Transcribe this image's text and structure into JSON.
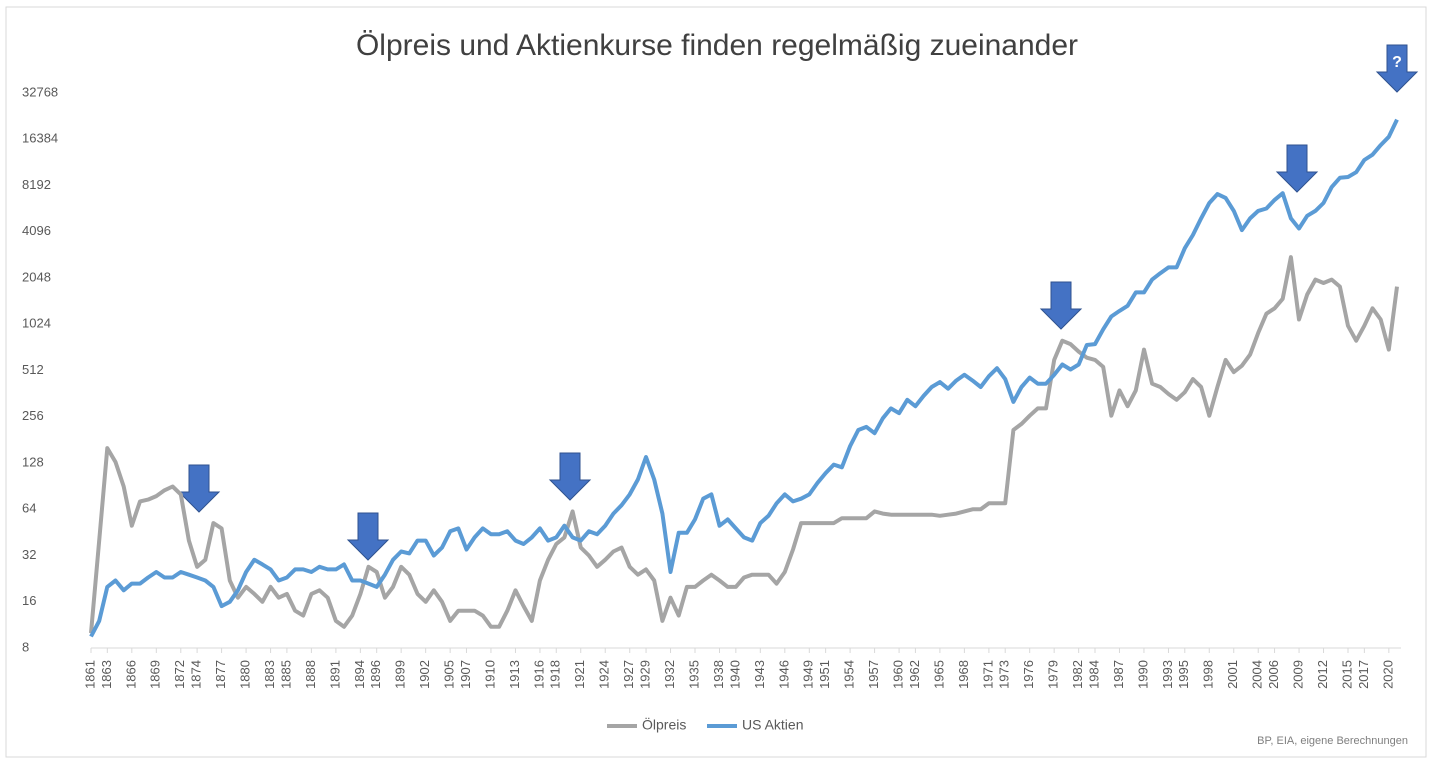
{
  "chart_data": {
    "type": "line",
    "title": "Ölpreis und Aktienkurse finden regelmäßig zueinander",
    "annotation": "?",
    "source": "BP, EIA, eigene Berechnungen",
    "log_scale": true,
    "log_base": 2,
    "grid": false,
    "legend": "bottom",
    "x": [
      1861,
      1862,
      1863,
      1864,
      1865,
      1866,
      1867,
      1868,
      1869,
      1870,
      1871,
      1872,
      1873,
      1874,
      1875,
      1876,
      1877,
      1878,
      1879,
      1880,
      1881,
      1882,
      1883,
      1884,
      1885,
      1886,
      1887,
      1888,
      1889,
      1890,
      1891,
      1892,
      1893,
      1894,
      1895,
      1896,
      1897,
      1898,
      1899,
      1900,
      1901,
      1902,
      1903,
      1904,
      1905,
      1906,
      1907,
      1908,
      1909,
      1910,
      1911,
      1912,
      1913,
      1914,
      1915,
      1916,
      1917,
      1918,
      1919,
      1920,
      1921,
      1922,
      1923,
      1924,
      1925,
      1926,
      1927,
      1928,
      1929,
      1930,
      1931,
      1932,
      1933,
      1934,
      1935,
      1936,
      1937,
      1938,
      1939,
      1940,
      1941,
      1942,
      1943,
      1944,
      1945,
      1946,
      1947,
      1948,
      1949,
      1950,
      1951,
      1952,
      1953,
      1954,
      1955,
      1956,
      1957,
      1958,
      1959,
      1960,
      1961,
      1962,
      1963,
      1964,
      1965,
      1966,
      1967,
      1968,
      1969,
      1970,
      1971,
      1972,
      1973,
      1974,
      1975,
      1976,
      1977,
      1978,
      1979,
      1980,
      1981,
      1982,
      1983,
      1984,
      1985,
      1986,
      1987,
      1988,
      1989,
      1990,
      1991,
      1992,
      1993,
      1994,
      1995,
      1996,
      1997,
      1998,
      1999,
      2000,
      2001,
      2002,
      2003,
      2004,
      2005,
      2006,
      2007,
      2008,
      2009,
      2010,
      2011,
      2012,
      2013,
      2014,
      2015,
      2016,
      2017,
      2018,
      2019,
      2020,
      2021
    ],
    "series": [
      {
        "name": "Ölpreis",
        "color": "#a5a5a5",
        "values": [
          10,
          40,
          160,
          130,
          90,
          50,
          72,
          74,
          78,
          85,
          90,
          80,
          40,
          27,
          30,
          52,
          48,
          22,
          17,
          20,
          18,
          16,
          20,
          17,
          18,
          14,
          13,
          18,
          19,
          17,
          12,
          11,
          13,
          18,
          27,
          25,
          17,
          20,
          27,
          24,
          18,
          16,
          19,
          16,
          12,
          14,
          14,
          14,
          13,
          11,
          11,
          14,
          19,
          15,
          12,
          22,
          30,
          38,
          42,
          62,
          36,
          32,
          27,
          30,
          34,
          36,
          27,
          24,
          26,
          22,
          12,
          17,
          13,
          20,
          20,
          22,
          24,
          22,
          20,
          20,
          23,
          24,
          24,
          24,
          21,
          25,
          35,
          52,
          52,
          52,
          52,
          52,
          56,
          56,
          56,
          56,
          62,
          60,
          59,
          59,
          59,
          59,
          59,
          59,
          58,
          59,
          60,
          62,
          64,
          64,
          70,
          70,
          70,
          210,
          230,
          260,
          290,
          290,
          600,
          800,
          760,
          680,
          620,
          600,
          540,
          260,
          380,
          300,
          380,
          700,
          420,
          400,
          360,
          330,
          370,
          450,
          400,
          260,
          400,
          600,
          500,
          550,
          650,
          900,
          1200,
          1300,
          1500,
          2800,
          1100,
          1600,
          2000,
          1900,
          2000,
          1800,
          1000,
          800,
          1000,
          1300,
          1100,
          700,
          1800
        ]
      },
      {
        "name": "US Aktien",
        "color": "#5b9bd5",
        "values": [
          9.5,
          12,
          20,
          22,
          19,
          21,
          21,
          23,
          25,
          23,
          23,
          25,
          24,
          23,
          22,
          20,
          15,
          16,
          19,
          25,
          30,
          28,
          26,
          22,
          23,
          26,
          26,
          25,
          27,
          26,
          26,
          28,
          22,
          22,
          21,
          20,
          24,
          30,
          34,
          33,
          40,
          40,
          32,
          36,
          46,
          48,
          35,
          42,
          48,
          44,
          44,
          46,
          40,
          38,
          42,
          48,
          40,
          42,
          50,
          42,
          40,
          46,
          44,
          50,
          60,
          68,
          80,
          100,
          140,
          100,
          60,
          25,
          45,
          45,
          55,
          75,
          80,
          50,
          55,
          48,
          42,
          40,
          52,
          58,
          70,
          80,
          72,
          75,
          80,
          95,
          110,
          125,
          120,
          165,
          210,
          220,
          200,
          250,
          290,
          270,
          330,
          300,
          350,
          400,
          430,
          390,
          440,
          480,
          440,
          400,
          470,
          530,
          450,
          320,
          400,
          460,
          420,
          420,
          480,
          560,
          520,
          560,
          750,
          760,
          950,
          1150,
          1250,
          1350,
          1650,
          1650,
          2000,
          2200,
          2400,
          2400,
          3200,
          3900,
          5000,
          6300,
          7200,
          6800,
          5600,
          4200,
          5000,
          5600,
          5800,
          6600,
          7300,
          5000,
          4300,
          5200,
          5600,
          6300,
          8000,
          9200,
          9300,
          10000,
          12000,
          13000,
          15000,
          17000,
          22000
        ]
      }
    ],
    "xlim": [
      1861,
      2021
    ],
    "xticks": [
      1861,
      1863,
      1866,
      1869,
      1872,
      1874,
      1877,
      1880,
      1883,
      1885,
      1888,
      1891,
      1894,
      1896,
      1899,
      1902,
      1905,
      1907,
      1910,
      1913,
      1916,
      1918,
      1921,
      1924,
      1927,
      1929,
      1932,
      1935,
      1938,
      1940,
      1943,
      1946,
      1949,
      1951,
      1954,
      1957,
      1960,
      1962,
      1965,
      1968,
      1971,
      1973,
      1976,
      1979,
      1982,
      1984,
      1987,
      1990,
      1993,
      1995,
      1998,
      2001,
      2004,
      2006,
      2009,
      2012,
      2015,
      2017,
      2020
    ],
    "ylim": [
      8,
      32768
    ],
    "yticks": [
      8,
      16,
      32,
      64,
      128,
      256,
      512,
      1024,
      2048,
      4096,
      8192,
      16384,
      32768
    ]
  }
}
